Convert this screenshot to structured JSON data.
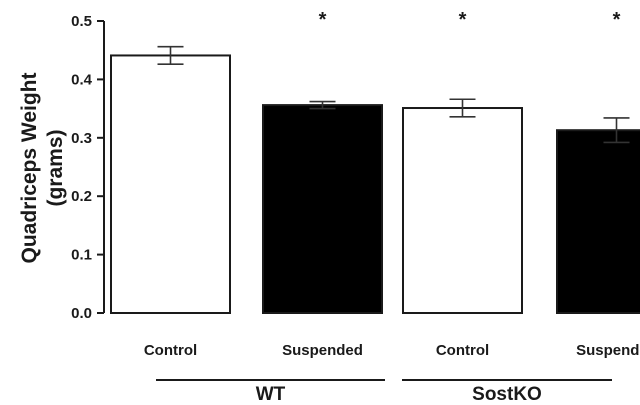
{
  "chart_data": {
    "type": "bar",
    "title": "",
    "ylabel_lines": [
      "Quadriceps Weight",
      "(grams)"
    ],
    "xlabel": "",
    "ylim": [
      0,
      0.5
    ],
    "yticks": [
      "0.0",
      "0.1",
      "0.2",
      "0.3",
      "0.4",
      "0.5"
    ],
    "ytick_values": [
      0,
      0.1,
      0.2,
      0.3,
      0.4,
      0.5
    ],
    "categories": [
      "Control",
      "Suspended",
      "Control",
      "Suspended"
    ],
    "values": [
      0.441,
      0.356,
      0.351,
      0.313
    ],
    "errors": [
      0.015,
      0.006,
      0.015,
      0.021
    ],
    "bar_fills": [
      "#ffffff",
      "#000000",
      "#ffffff",
      "#000000"
    ],
    "significance": [
      "",
      "*",
      "*",
      "*"
    ],
    "groups": [
      {
        "label": "WT",
        "categories": [
          0,
          1
        ]
      },
      {
        "label": "SostKO",
        "categories": [
          2,
          3
        ]
      }
    ]
  }
}
